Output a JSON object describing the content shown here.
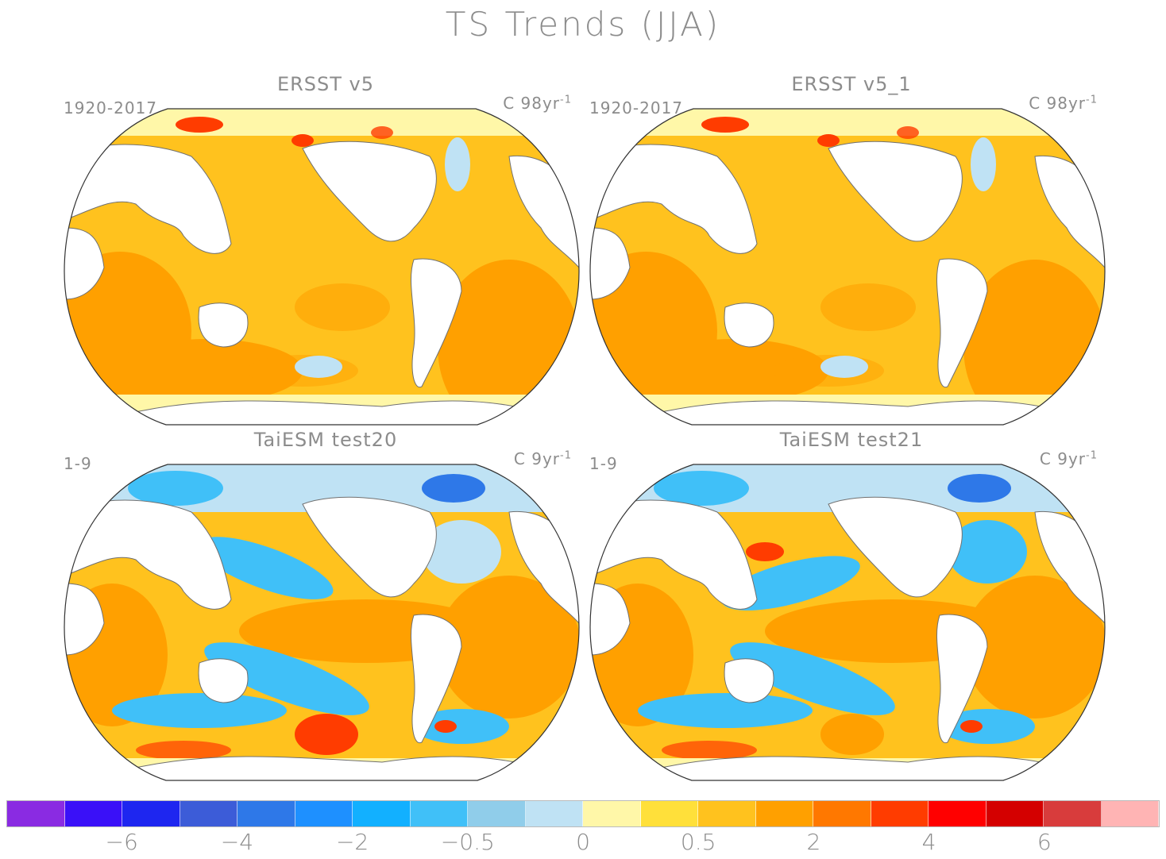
{
  "title": "TS Trends (JJA)",
  "panels": [
    {
      "title": "ERSST v5",
      "period": "1920-2017",
      "units_prefix": "C 98yr",
      "units_exp": "-1",
      "style": "obs"
    },
    {
      "title": "ERSST v5_1",
      "period": "1920-2017",
      "units_prefix": "C 98yr",
      "units_exp": "-1",
      "style": "obs"
    },
    {
      "title": "TaiESM test20",
      "period": "1-9",
      "units_prefix": "C 9yr",
      "units_exp": "-1",
      "style": "model"
    },
    {
      "title": "TaiESM test21",
      "period": "1-9",
      "units_prefix": "C 9yr",
      "units_exp": "-1",
      "style": "model"
    }
  ],
  "colorbar": {
    "colors": [
      "#8a2be2",
      "#3a10f8",
      "#1e26f0",
      "#3c5cd8",
      "#2e78e8",
      "#1e90ff",
      "#12b0ff",
      "#40c0f8",
      "#90cdea",
      "#bfe2f4",
      "#fff7a8",
      "#ffe03a",
      "#ffc21e",
      "#ffa000",
      "#ff7800",
      "#ff3c00",
      "#ff0000",
      "#d40000",
      "#d83c3c",
      "#ffb4b4"
    ],
    "tick_labels": [
      "−6",
      "−4",
      "−2",
      "−0.5",
      "0",
      "0.5",
      "2",
      "4",
      "6"
    ]
  },
  "map_colors": {
    "ocean_warm": "#ffc21e",
    "ocean_orange": "#ffa000",
    "ocean_deep_orange": "#ff7800",
    "ocean_yellow": "#fff7a8",
    "ocean_lightblue": "#bfe2f4",
    "ocean_blue": "#40c0f8",
    "ocean_darkblue": "#2e78e8",
    "ocean_red": "#ff3c00",
    "land": "#ffffff",
    "coast": "#707070"
  }
}
